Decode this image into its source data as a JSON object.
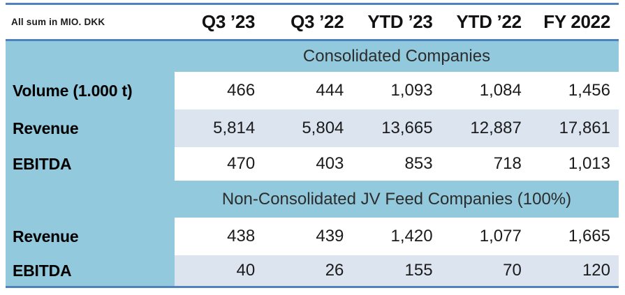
{
  "meta": {
    "unit_label": "All sum in MIO. DKK",
    "colors": {
      "band_blue": "#92c9dd",
      "alt_row_blue": "#dce4f0",
      "border_blue": "#4f81bd",
      "text_dark": "#1b1b1b"
    }
  },
  "columns": [
    "Q3 ’23",
    "Q3 ’22",
    "YTD ’23",
    "YTD ’22",
    "FY 2022"
  ],
  "sections": [
    {
      "title": "Consolidated Companies",
      "rows": [
        {
          "label": "Volume (1.000 t)",
          "values": [
            "466",
            "444",
            "1,093",
            "1,084",
            "1,456"
          ]
        },
        {
          "label": "Revenue",
          "values": [
            "5,814",
            "5,804",
            "13,665",
            "12,887",
            "17,861"
          ]
        },
        {
          "label": "EBITDA",
          "values": [
            "470",
            "403",
            "853",
            "718",
            "1,013"
          ]
        }
      ]
    },
    {
      "title": "Non-Consolidated JV Feed Companies (100%)",
      "rows": [
        {
          "label": "Revenue",
          "values": [
            "438",
            "439",
            "1,420",
            "1,077",
            "1,665"
          ]
        },
        {
          "label": "EBITDA",
          "values": [
            "40",
            "26",
            "155",
            "70",
            "120"
          ]
        }
      ]
    }
  ],
  "chart_data": {
    "type": "table",
    "title": "All sum in MIO. DKK",
    "columns": [
      "Q3 ’23",
      "Q3 ’22",
      "YTD ’23",
      "YTD ’22",
      "FY 2022"
    ],
    "groups": [
      {
        "name": "Consolidated Companies",
        "rows": [
          {
            "label": "Volume (1.000 t)",
            "values": [
              466,
              444,
              1093,
              1084,
              1456
            ]
          },
          {
            "label": "Revenue",
            "values": [
              5814,
              5804,
              13665,
              12887,
              17861
            ]
          },
          {
            "label": "EBITDA",
            "values": [
              470,
              403,
              853,
              718,
              1013
            ]
          }
        ]
      },
      {
        "name": "Non-Consolidated JV Feed Companies (100%)",
        "rows": [
          {
            "label": "Revenue",
            "values": [
              438,
              439,
              1420,
              1077,
              1665
            ]
          },
          {
            "label": "EBITDA",
            "values": [
              40,
              26,
              155,
              70,
              120
            ]
          }
        ]
      }
    ]
  }
}
